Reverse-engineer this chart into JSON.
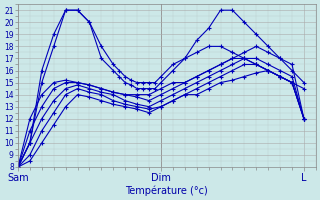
{
  "background_color": "#cce8e8",
  "grid_major_color": "#aaaaaa",
  "grid_minor_color": "#bbcccc",
  "line_color": "#0000bb",
  "marker_color": "#0000bb",
  "ylim_min": 8,
  "ylim_max": 21.5,
  "xlim_min": 0,
  "xlim_max": 50,
  "yticks": [
    8,
    9,
    10,
    11,
    12,
    13,
    14,
    15,
    16,
    17,
    18,
    19,
    20,
    21
  ],
  "xtick_positions": [
    0,
    24,
    48
  ],
  "xtick_labels": [
    "Sam",
    "Dim",
    "L"
  ],
  "xlabel": "Température (°c)",
  "series": [
    {
      "x": [
        0,
        2,
        4,
        6,
        8,
        10,
        12,
        14,
        16,
        17,
        18,
        19,
        20,
        21,
        22,
        23,
        24,
        26,
        28,
        30,
        32,
        34,
        36,
        38,
        40,
        42,
        44,
        46,
        48
      ],
      "y": [
        8,
        10,
        16,
        19,
        21,
        21,
        20,
        18,
        16.5,
        16,
        15.5,
        15.2,
        15,
        15,
        15,
        15,
        15.5,
        16.5,
        17,
        17.5,
        18,
        18,
        17.5,
        17,
        16.5,
        16,
        15.5,
        15,
        14.5
      ]
    },
    {
      "x": [
        0,
        2,
        4,
        6,
        8,
        10,
        12,
        14,
        16,
        17,
        18,
        19,
        20,
        21,
        22,
        23,
        24,
        26,
        28,
        30,
        32,
        34,
        36,
        38,
        40,
        42,
        44,
        46,
        48
      ],
      "y": [
        8,
        10,
        15,
        18,
        21,
        21,
        20,
        17,
        16,
        15.5,
        15,
        14.8,
        14.5,
        14.5,
        14.5,
        14.5,
        15,
        16,
        17,
        18.5,
        19.5,
        21,
        21,
        20,
        19,
        18,
        17,
        16,
        15
      ]
    },
    {
      "x": [
        0,
        2,
        4,
        6,
        8,
        10,
        12,
        14,
        16,
        18,
        20,
        22,
        24,
        26,
        28,
        30,
        32,
        34,
        36,
        38,
        40,
        42,
        44,
        46,
        48
      ],
      "y": [
        8,
        12,
        14,
        15,
        15.2,
        15,
        14.8,
        14.5,
        14.2,
        14,
        14,
        14,
        14.5,
        15,
        15,
        15.5,
        16,
        16.5,
        17,
        17.5,
        18,
        17.5,
        17,
        16.5,
        12
      ]
    },
    {
      "x": [
        0,
        2,
        4,
        6,
        8,
        10,
        12,
        14,
        16,
        18,
        20,
        22,
        24,
        26,
        28,
        30,
        32,
        34,
        36,
        38,
        40,
        42,
        44,
        46,
        48
      ],
      "y": [
        8,
        11,
        13,
        14.5,
        15,
        15,
        14.8,
        14.5,
        14.2,
        14,
        13.8,
        13.5,
        14,
        14.5,
        15,
        15.5,
        16,
        16.5,
        17,
        17,
        16.5,
        16,
        15.5,
        15,
        12
      ]
    },
    {
      "x": [
        0,
        2,
        4,
        6,
        8,
        10,
        12,
        14,
        16,
        18,
        20,
        22,
        24,
        26,
        28,
        30,
        32,
        34,
        36,
        38,
        40,
        42,
        44,
        46,
        48
      ],
      "y": [
        8,
        10,
        12,
        13.5,
        14.5,
        14.8,
        14.5,
        14.2,
        14,
        13.5,
        13.2,
        13,
        13.5,
        14,
        14.5,
        15,
        15.5,
        16,
        16.5,
        17,
        17,
        16.5,
        16,
        15.5,
        12
      ]
    },
    {
      "x": [
        0,
        2,
        4,
        6,
        8,
        10,
        12,
        14,
        16,
        18,
        20,
        22,
        24,
        26,
        28,
        30,
        32,
        34,
        36,
        38,
        40,
        42,
        44,
        46,
        48
      ],
      "y": [
        8,
        9,
        11,
        12.5,
        14,
        14.5,
        14.2,
        14,
        13.5,
        13.2,
        13,
        12.8,
        13,
        13.5,
        14,
        14.5,
        15,
        15.5,
        16,
        16.5,
        16.5,
        16,
        15.5,
        15,
        12
      ]
    },
    {
      "x": [
        0,
        2,
        4,
        6,
        8,
        10,
        12,
        14,
        16,
        18,
        20,
        22,
        24,
        26,
        28,
        30,
        32,
        34,
        36,
        38,
        40,
        42,
        44,
        46,
        48
      ],
      "y": [
        8,
        8.5,
        10,
        11.5,
        13,
        14,
        13.8,
        13.5,
        13.2,
        13,
        12.8,
        12.5,
        13,
        13.5,
        14,
        14,
        14.5,
        15,
        15.2,
        15.5,
        15.8,
        16,
        15.5,
        15,
        12
      ]
    }
  ]
}
